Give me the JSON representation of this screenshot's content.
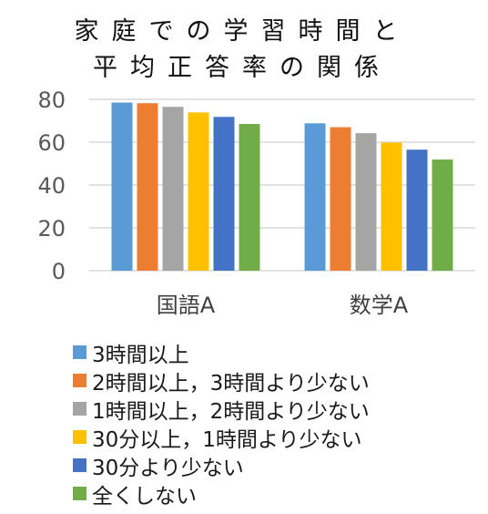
{
  "title_lines": [
    "家庭での学習時間と",
    "平均正答率の関係"
  ],
  "chart_data": {
    "type": "bar",
    "title": "家庭での学習時間と平均正答率の関係",
    "categories": [
      "国語A",
      "数学A"
    ],
    "series": [
      {
        "name": "3時間以上",
        "color": "#5B9BD5",
        "values": [
          78.5,
          68.8
        ]
      },
      {
        "name": "2時間以上，3時間より少ない",
        "color": "#ED7D31",
        "values": [
          78.2,
          67.0
        ]
      },
      {
        "name": "1時間以上，2時間より少ない",
        "color": "#A5A5A5",
        "values": [
          76.5,
          64.2
        ]
      },
      {
        "name": "30分以上，1時間より少ない",
        "color": "#FFC000",
        "values": [
          73.9,
          59.8
        ]
      },
      {
        "name": "30分より少ない",
        "color": "#4472C4",
        "values": [
          71.8,
          56.5
        ]
      },
      {
        "name": "全くしない",
        "color": "#70AD47",
        "values": [
          68.5,
          51.9
        ]
      }
    ],
    "ylim": [
      0,
      80
    ],
    "yticks": [
      "0",
      "20",
      "40",
      "60",
      "80"
    ],
    "grid": true,
    "legend_position": "bottom",
    "xlabel": "",
    "ylabel": ""
  }
}
